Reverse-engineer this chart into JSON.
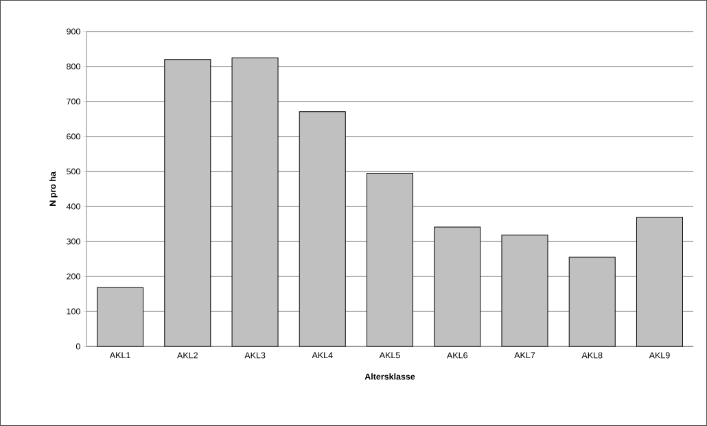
{
  "chart_data": {
    "type": "bar",
    "xlabel": "Altersklasse",
    "ylabel": "N pro ha",
    "categories": [
      "AKL1",
      "AKL2",
      "AKL3",
      "AKL4",
      "AKL5",
      "AKL6",
      "AKL7",
      "AKL8",
      "AKL9"
    ],
    "values": [
      168,
      820,
      825,
      671,
      495,
      341,
      318,
      255,
      369
    ],
    "color": "#c0c0c0",
    "ylim": [
      0,
      900
    ],
    "yticks": [
      0,
      100,
      200,
      300,
      400,
      500,
      600,
      700,
      800,
      900
    ],
    "grid": "y"
  }
}
